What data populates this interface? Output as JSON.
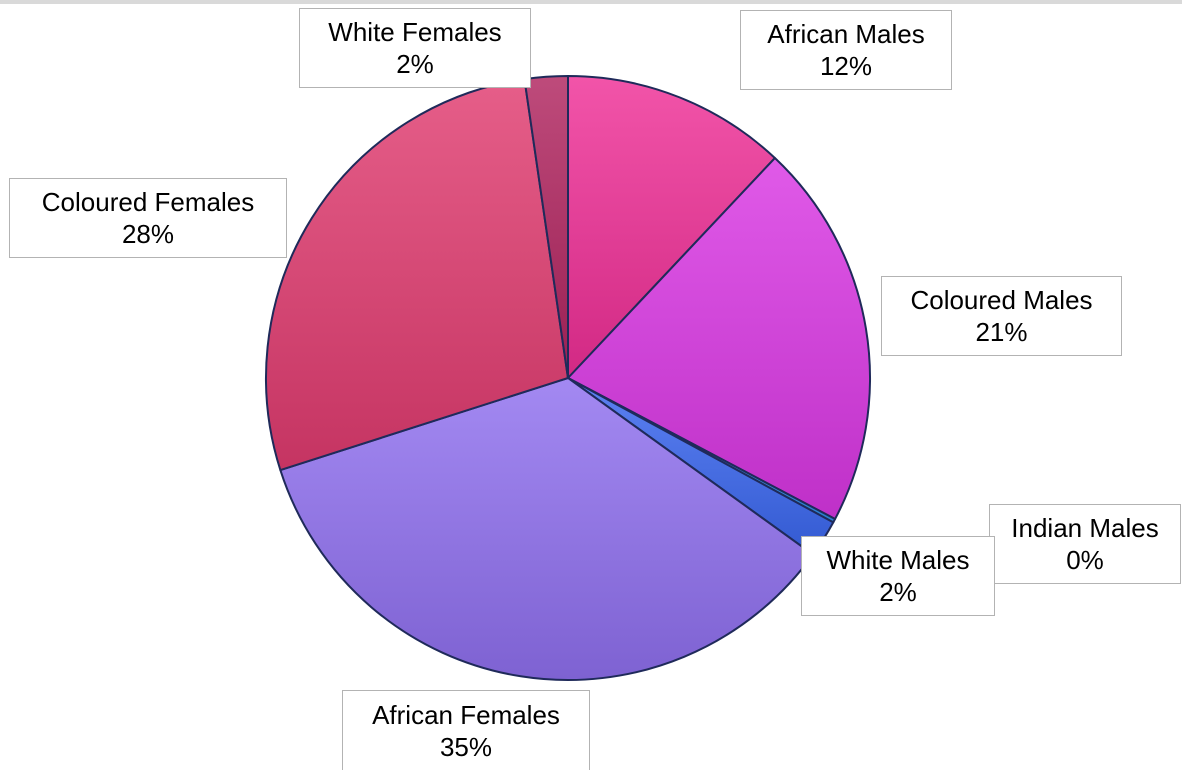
{
  "chart_data": {
    "type": "pie",
    "start_angle_deg": 0,
    "direction": "clockwise",
    "slices": [
      {
        "label": "African Males",
        "percent_label": "12%",
        "value": 12.0,
        "color": "#ef2f96"
      },
      {
        "label": "Coloured Males",
        "percent_label": "21%",
        "value": 20.7,
        "color": "#d936e3"
      },
      {
        "label": "Indian Males",
        "percent_label": "0%",
        "value": 0.2,
        "color": "#2f8fe8"
      },
      {
        "label": "White Males",
        "percent_label": "2%",
        "value": 2.0,
        "color": "#3a66ef"
      },
      {
        "label": "African Females",
        "percent_label": "35%",
        "value": 35.1,
        "color": "#8f6fef"
      },
      {
        "label": "Coloured Females",
        "percent_label": "28%",
        "value": 27.6,
        "color": "#e03b6f"
      },
      {
        "label": "White Females",
        "percent_label": "2%",
        "value": 2.3,
        "color": "#b0235e"
      }
    ],
    "legend": "none"
  }
}
